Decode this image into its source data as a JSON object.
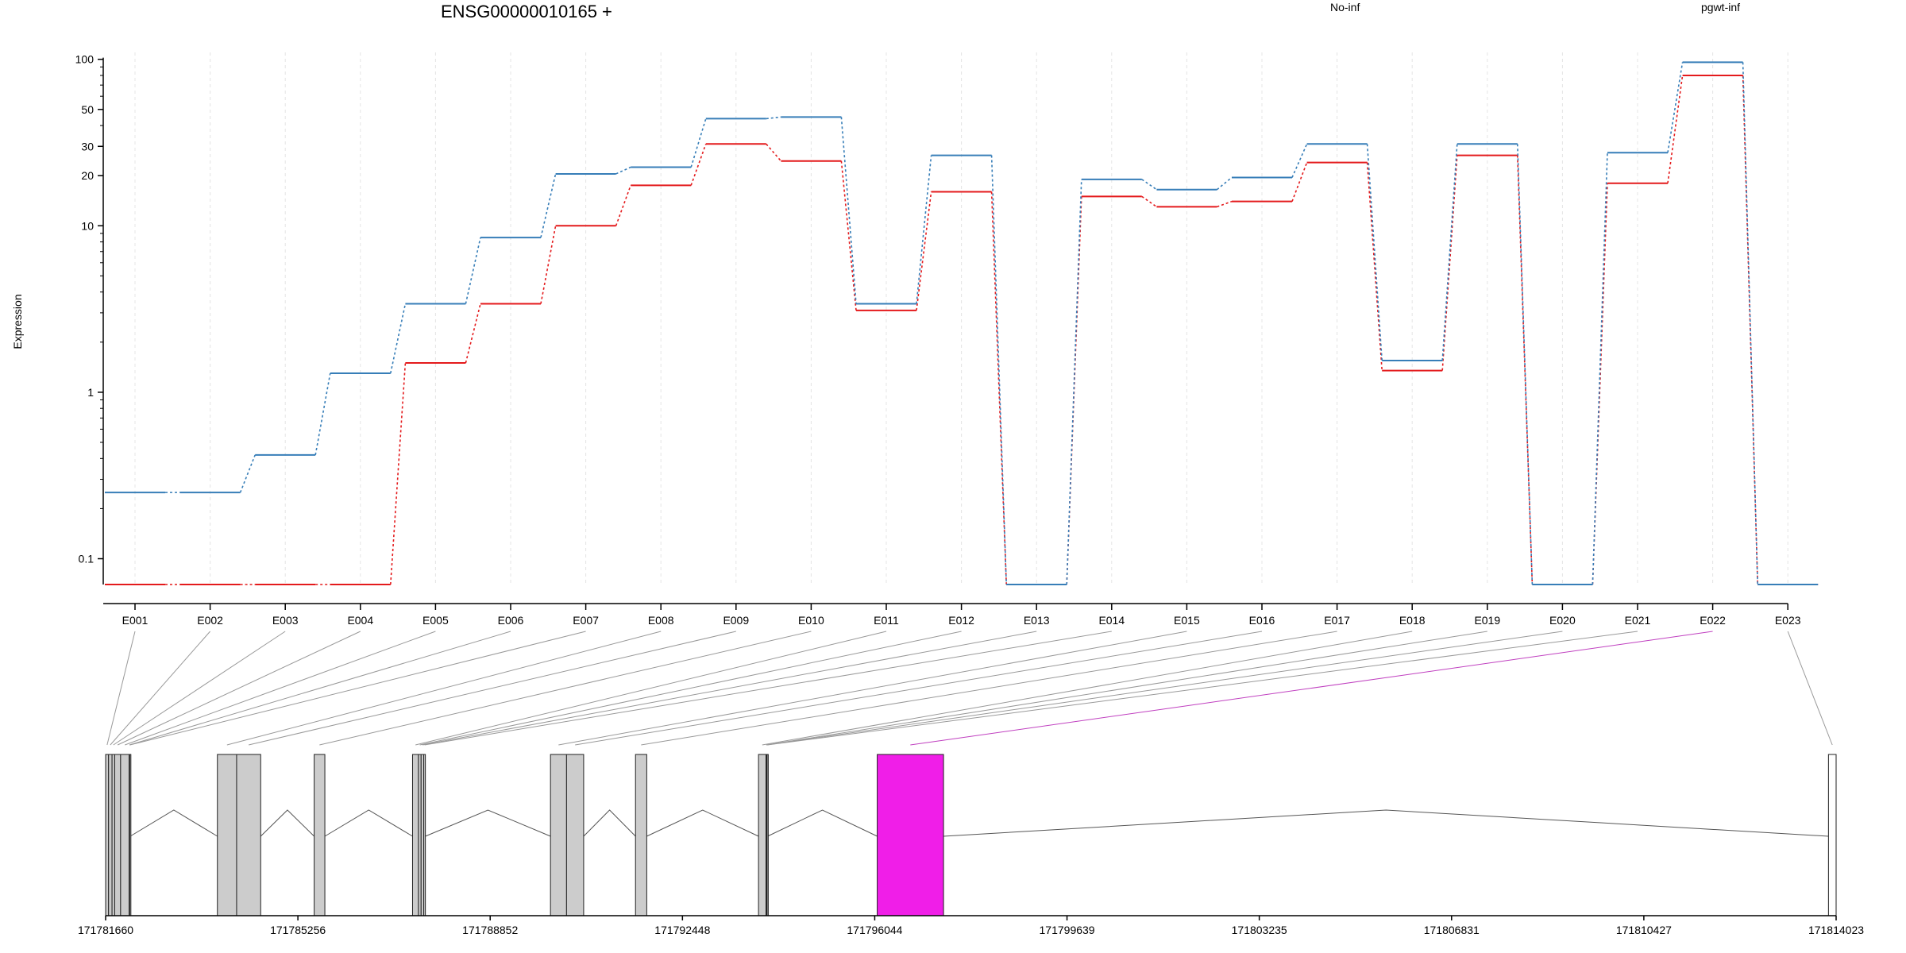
{
  "header": {
    "gene_id": "ENSG00000010165 +",
    "legend": [
      {
        "label": "No-inf",
        "color": "#e41a1c"
      },
      {
        "label": "pgwt-inf",
        "color": "#377eb8"
      }
    ]
  },
  "colors": {
    "highlight_exon": "#f01ee8",
    "exon_fill": "#cccccc",
    "connector": "#999999",
    "highlight_connector": "#c040c0"
  },
  "chart_data": {
    "type": "line",
    "ylabel": "Expression",
    "y_scale": "log",
    "ylim": [
      0.07,
      110
    ],
    "y_ticks": [
      {
        "value": 100,
        "label": "100"
      },
      {
        "value": 50,
        "label": "50"
      },
      {
        "value": 30,
        "label": "30"
      },
      {
        "value": 20,
        "label": "20"
      },
      {
        "value": 10,
        "label": "10"
      },
      {
        "value": 1,
        "label": "1"
      },
      {
        "value": 0.1,
        "label": "0.1"
      }
    ],
    "categories": [
      "E001",
      "E002",
      "E003",
      "E004",
      "E005",
      "E006",
      "E007",
      "E008",
      "E009",
      "E010",
      "E011",
      "E012",
      "E013",
      "E014",
      "E015",
      "E016",
      "E017",
      "E018",
      "E019",
      "E020",
      "E021",
      "E022",
      "E023"
    ],
    "series": [
      {
        "name": "No-inf",
        "color": "#e41a1c",
        "values": [
          0.07,
          0.07,
          0.07,
          0.07,
          1.5,
          3.4,
          10,
          17.5,
          31,
          24.5,
          3.1,
          16,
          0.07,
          15,
          13,
          14,
          24,
          1.35,
          26.5,
          0.07,
          18,
          80,
          0.07
        ]
      },
      {
        "name": "pgwt-inf",
        "color": "#377eb8",
        "values": [
          0.25,
          0.25,
          0.42,
          1.3,
          3.4,
          8.5,
          20.5,
          22.5,
          44,
          45,
          3.4,
          26.5,
          0.07,
          19,
          16.5,
          19.5,
          31,
          1.55,
          31,
          0.07,
          27.5,
          96,
          0.07
        ]
      }
    ],
    "highlight_exon": "E022",
    "grid": "x",
    "genomic_axis": {
      "range": [
        171781660,
        171814023
      ],
      "ticks": [
        "171781660",
        "171785256",
        "171788852",
        "171792448",
        "171796044",
        "171799639",
        "171803235",
        "171806831",
        "171810427",
        "171814023"
      ]
    },
    "exons": [
      {
        "id": "E001",
        "start": 171781660,
        "end": 171781715
      },
      {
        "id": "E002",
        "start": 171781715,
        "end": 171781780
      },
      {
        "id": "E003",
        "start": 171781780,
        "end": 171781830
      },
      {
        "id": "E004",
        "start": 171781830,
        "end": 171781940
      },
      {
        "id": "E005",
        "start": 171781940,
        "end": 171782100
      },
      {
        "id": "E006",
        "start": 171782100,
        "end": 171782110
      },
      {
        "id": "E007",
        "start": 171782110,
        "end": 171782120
      },
      {
        "id": "E008",
        "start": 171783750,
        "end": 171784110
      },
      {
        "id": "E009",
        "start": 171784110,
        "end": 171784560
      },
      {
        "id": "E010",
        "start": 171785560,
        "end": 171785760
      },
      {
        "id": "E011",
        "start": 171787400,
        "end": 171787510
      },
      {
        "id": "E012",
        "start": 171787510,
        "end": 171787560
      },
      {
        "id": "E013",
        "start": 171787560,
        "end": 171787610
      },
      {
        "id": "E014",
        "start": 171787610,
        "end": 171787640
      },
      {
        "id": "E015",
        "start": 171789980,
        "end": 171790280
      },
      {
        "id": "E016",
        "start": 171790280,
        "end": 171790600
      },
      {
        "id": "E017",
        "start": 171791570,
        "end": 171791780
      },
      {
        "id": "E018",
        "start": 171793870,
        "end": 171794010
      },
      {
        "id": "E019",
        "start": 171794010,
        "end": 171794020
      },
      {
        "id": "E020",
        "start": 171794020,
        "end": 171794030
      },
      {
        "id": "E021",
        "start": 171794030,
        "end": 171794040
      },
      {
        "id": "E022",
        "start": 171796090,
        "end": 171797330
      },
      {
        "id": "E023",
        "start": 171813880,
        "end": 171814023
      }
    ]
  }
}
